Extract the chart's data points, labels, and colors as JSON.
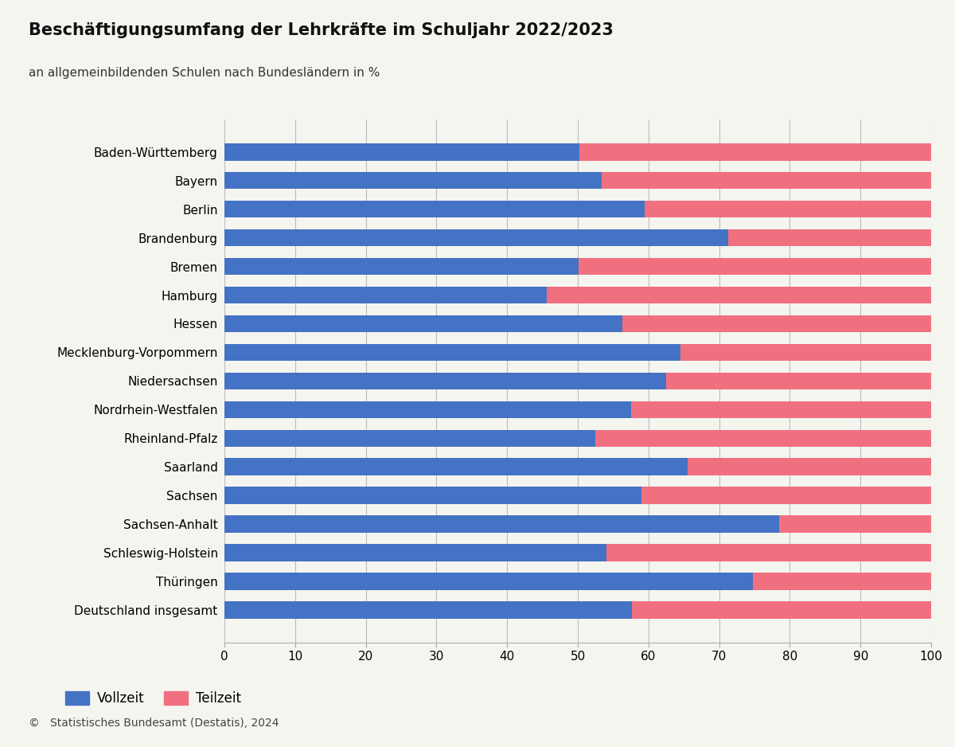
{
  "title": "Beschäftigungsumfang der Lehrkräfte im Schuljahr 2022/2023",
  "subtitle": "an allgemeinbildenden Schulen nach Bundesländern in %",
  "categories": [
    "Baden-Württemberg",
    "Bayern",
    "Berlin",
    "Brandenburg",
    "Bremen",
    "Hamburg",
    "Hessen",
    "Mecklenburg-Vorpommern",
    "Niedersachsen",
    "Nordrhein-Westfalen",
    "Rheinland-Pfalz",
    "Saarland",
    "Sachsen",
    "Sachsen-Anhalt",
    "Schleswig-Holstein",
    "Thüringen",
    "Deutschland insgesamt"
  ],
  "vollzeit": [
    50.2,
    53.4,
    59.5,
    71.3,
    50.1,
    45.6,
    56.3,
    64.5,
    62.5,
    57.5,
    52.5,
    65.5,
    59.0,
    78.5,
    54.0,
    74.8,
    57.7
  ],
  "teilzeit": [
    49.8,
    46.6,
    40.5,
    28.7,
    49.9,
    54.4,
    43.7,
    35.5,
    37.5,
    42.5,
    47.5,
    34.5,
    41.0,
    21.5,
    46.0,
    25.2,
    42.3
  ],
  "vollzeit_color": "#4472c4",
  "teilzeit_color": "#f07080",
  "background_color": "#f5f5f0",
  "title_fontsize": 15,
  "subtitle_fontsize": 11,
  "label_fontsize": 11,
  "tick_fontsize": 11,
  "legend_fontsize": 12,
  "footer_text": "©   Statistisches Bundesamt (Destatis), 2024",
  "xlim": [
    0,
    100
  ],
  "xticks": [
    0,
    10,
    20,
    30,
    40,
    50,
    60,
    70,
    80,
    90,
    100
  ]
}
